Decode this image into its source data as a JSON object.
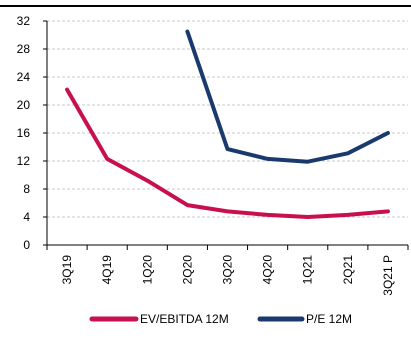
{
  "chart_data": {
    "type": "line",
    "categories": [
      "3Q19",
      "4Q19",
      "1Q20",
      "2Q20",
      "3Q20",
      "4Q20",
      "1Q21",
      "2Q21",
      "3Q21 P"
    ],
    "series": [
      {
        "name": "EV/EBITDA 12M",
        "color": "#c8104e",
        "values": [
          22.2,
          12.3,
          9.2,
          5.7,
          4.8,
          4.3,
          4.0,
          4.3,
          4.8
        ]
      },
      {
        "name": "P/E 12M",
        "color": "#1a3a6e",
        "values": [
          null,
          null,
          null,
          30.5,
          13.7,
          12.3,
          11.9,
          13.1,
          16.0
        ]
      }
    ],
    "ylim": [
      0,
      32
    ],
    "yticks": [
      0,
      4,
      8,
      12,
      16,
      20,
      24,
      28,
      32
    ],
    "grid": true,
    "legend_position": "bottom",
    "title": "",
    "xlabel": "",
    "ylabel": ""
  }
}
